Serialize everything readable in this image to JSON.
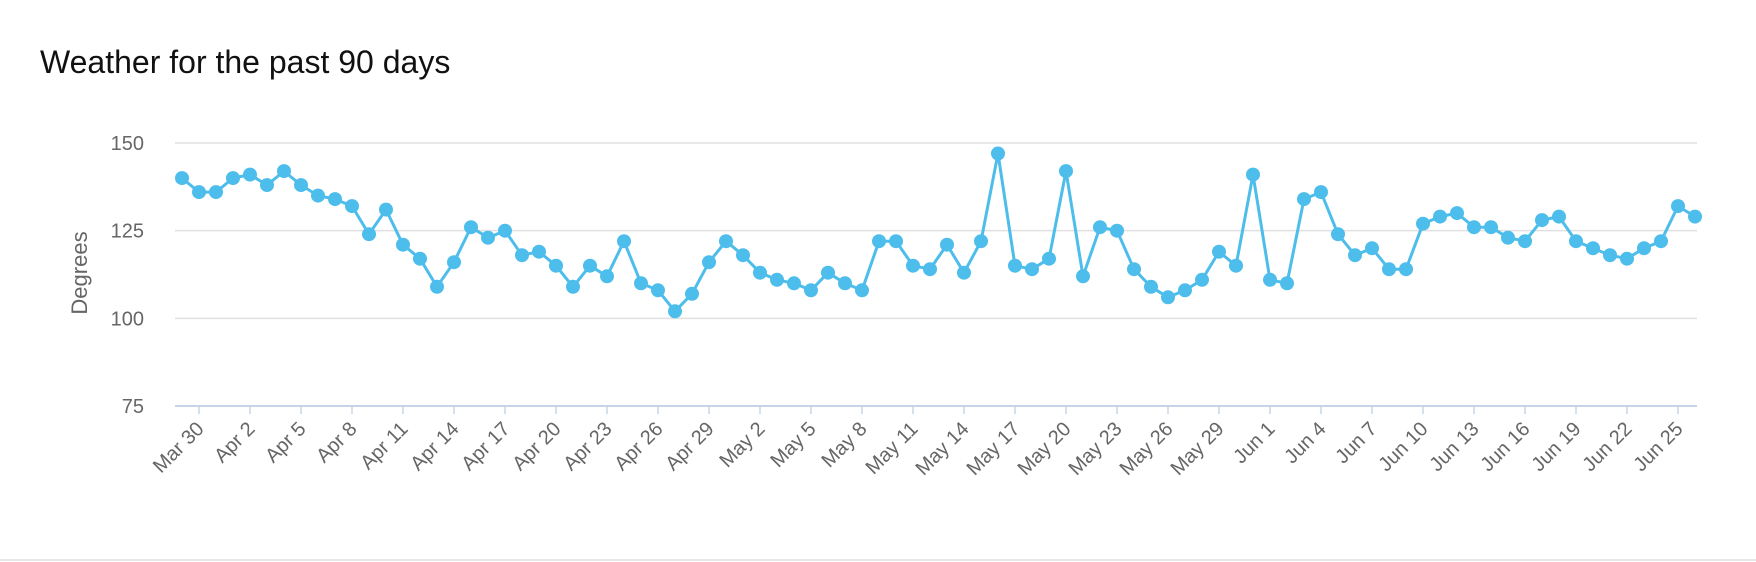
{
  "colors": {
    "series": "#4dbdeb",
    "grid": "#e0e0e0",
    "axis_line": "#c8d4e6",
    "text": "#666666"
  },
  "chart_data": {
    "type": "line",
    "title": "Weather for the past 90 days",
    "ylabel": "Degrees",
    "xlabel": "",
    "ylim": [
      75,
      150
    ],
    "yticks": [
      75,
      100,
      125,
      150
    ],
    "grid": true,
    "legend": "none",
    "x_tick_labels": [
      "Mar 30",
      "Apr 2",
      "Apr 5",
      "Apr 8",
      "Apr 11",
      "Apr 14",
      "Apr 17",
      "Apr 20",
      "Apr 23",
      "Apr 26",
      "Apr 29",
      "May 2",
      "May 5",
      "May 8",
      "May 11",
      "May 14",
      "May 17",
      "May 20",
      "May 23",
      "May 26",
      "May 29",
      "Jun 1",
      "Jun 4",
      "Jun 7",
      "Jun 10",
      "Jun 13",
      "Jun 16",
      "Jun 19",
      "Jun 22",
      "Jun 25"
    ],
    "x": [
      "Mar 29",
      "Mar 30",
      "Mar 31",
      "Apr 1",
      "Apr 2",
      "Apr 3",
      "Apr 4",
      "Apr 5",
      "Apr 6",
      "Apr 7",
      "Apr 8",
      "Apr 9",
      "Apr 10",
      "Apr 11",
      "Apr 12",
      "Apr 13",
      "Apr 14",
      "Apr 15",
      "Apr 16",
      "Apr 17",
      "Apr 18",
      "Apr 19",
      "Apr 20",
      "Apr 21",
      "Apr 22",
      "Apr 23",
      "Apr 24",
      "Apr 25",
      "Apr 26",
      "Apr 27",
      "Apr 28",
      "Apr 29",
      "Apr 30",
      "May 1",
      "May 2",
      "May 3",
      "May 4",
      "May 5",
      "May 6",
      "May 7",
      "May 8",
      "May 9",
      "May 10",
      "May 11",
      "May 12",
      "May 13",
      "May 14",
      "May 15",
      "May 16",
      "May 17",
      "May 18",
      "May 19",
      "May 20",
      "May 21",
      "May 22",
      "May 23",
      "May 24",
      "May 25",
      "May 26",
      "May 27",
      "May 28",
      "May 29",
      "May 30",
      "May 31",
      "Jun 1",
      "Jun 2",
      "Jun 3",
      "Jun 4",
      "Jun 5",
      "Jun 6",
      "Jun 7",
      "Jun 8",
      "Jun 9",
      "Jun 10",
      "Jun 11",
      "Jun 12",
      "Jun 13",
      "Jun 14",
      "Jun 15",
      "Jun 16",
      "Jun 17",
      "Jun 18",
      "Jun 19",
      "Jun 20",
      "Jun 21",
      "Jun 22",
      "Jun 23",
      "Jun 24",
      "Jun 25",
      "Jun 26"
    ],
    "series": [
      {
        "values": [
          140,
          136,
          136,
          140,
          141,
          138,
          142,
          138,
          135,
          134,
          132,
          124,
          131,
          121,
          117,
          109,
          116,
          126,
          123,
          125,
          118,
          119,
          115,
          109,
          115,
          112,
          122,
          110,
          108,
          102,
          107,
          116,
          122,
          118,
          113,
          111,
          110,
          108,
          113,
          110,
          108,
          122,
          122,
          115,
          114,
          121,
          113,
          122,
          147,
          115,
          114,
          117,
          142,
          112,
          126,
          125,
          114,
          109,
          106,
          108,
          111,
          119,
          115,
          141,
          111,
          110,
          134,
          136,
          124,
          118,
          120,
          114,
          114,
          127,
          129,
          130,
          126,
          126,
          123,
          122,
          128,
          129,
          122,
          120,
          118,
          117,
          120,
          122,
          132,
          129
        ]
      }
    ]
  }
}
